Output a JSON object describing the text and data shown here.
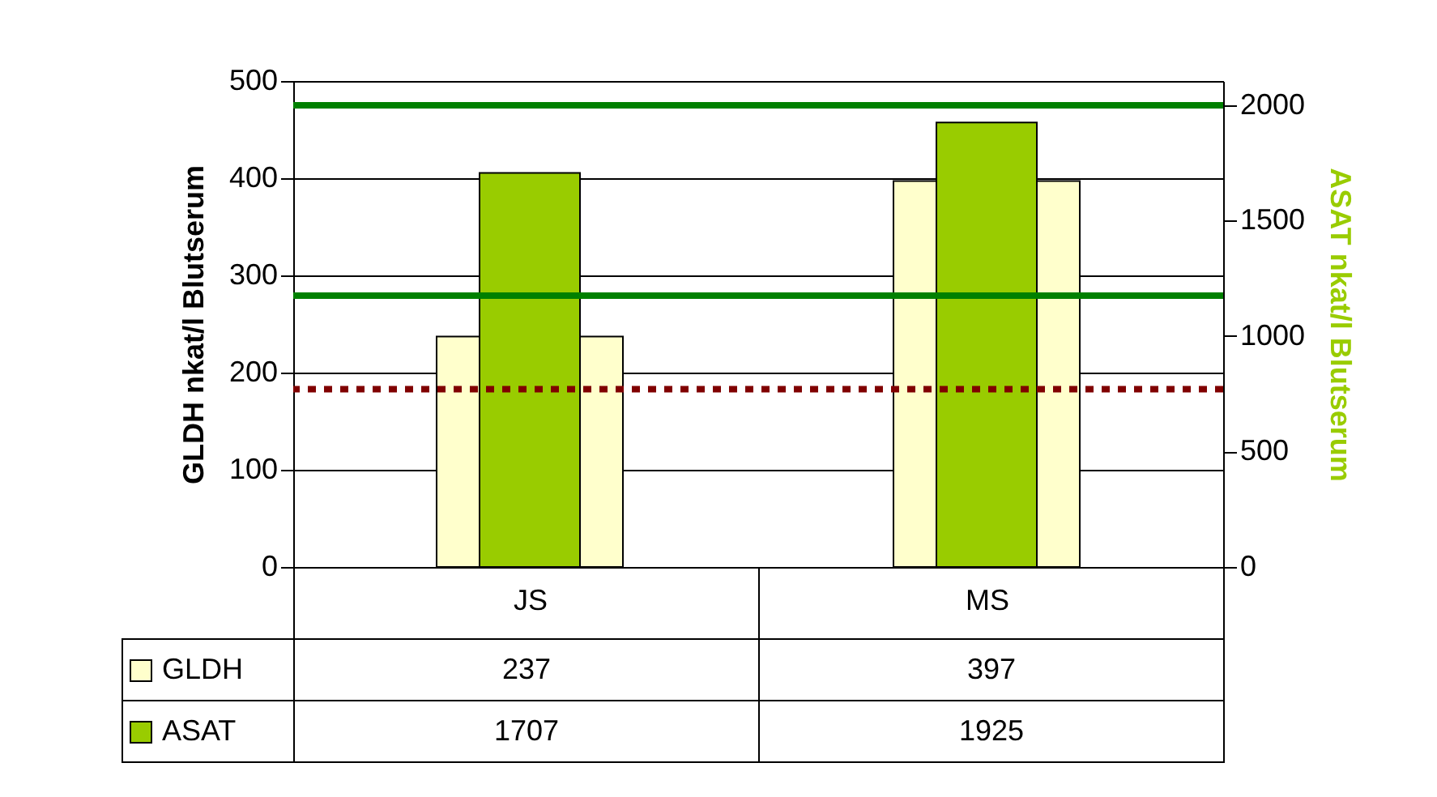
{
  "chart_data": {
    "type": "bar",
    "ylabel": "GLDH nkat/l Blutserum",
    "y2label": "ASAT nkat/l Blutserum",
    "categories": [
      "JS",
      "MS"
    ],
    "series": [
      {
        "name": "GLDH",
        "color": "#ffffcc",
        "values": [
          237,
          397
        ],
        "value_labels": [
          "237",
          "397"
        ]
      },
      {
        "name": "ASAT",
        "color": "#99cc00",
        "values": [
          1707,
          1925
        ],
        "axis": "y2",
        "value_labels": [
          "1707",
          "1925"
        ]
      }
    ],
    "ylim": [
      0,
      500
    ],
    "yticks": [
      0,
      100,
      200,
      300,
      400,
      500
    ],
    "y2lim": [
      0,
      2105
    ],
    "y2ticks": [
      0,
      500,
      1000,
      1500,
      2000
    ],
    "ref_lines": [
      {
        "axis": "y",
        "value": 183,
        "color": "#800000",
        "line_style": "dotted"
      },
      {
        "axis": "y2",
        "value": 2000,
        "color": "#008000",
        "line_style": "solid"
      },
      {
        "axis": "y2",
        "value": 1175,
        "color": "#008000",
        "line_style": "solid"
      }
    ],
    "grid": "y",
    "legend": "bottom"
  }
}
